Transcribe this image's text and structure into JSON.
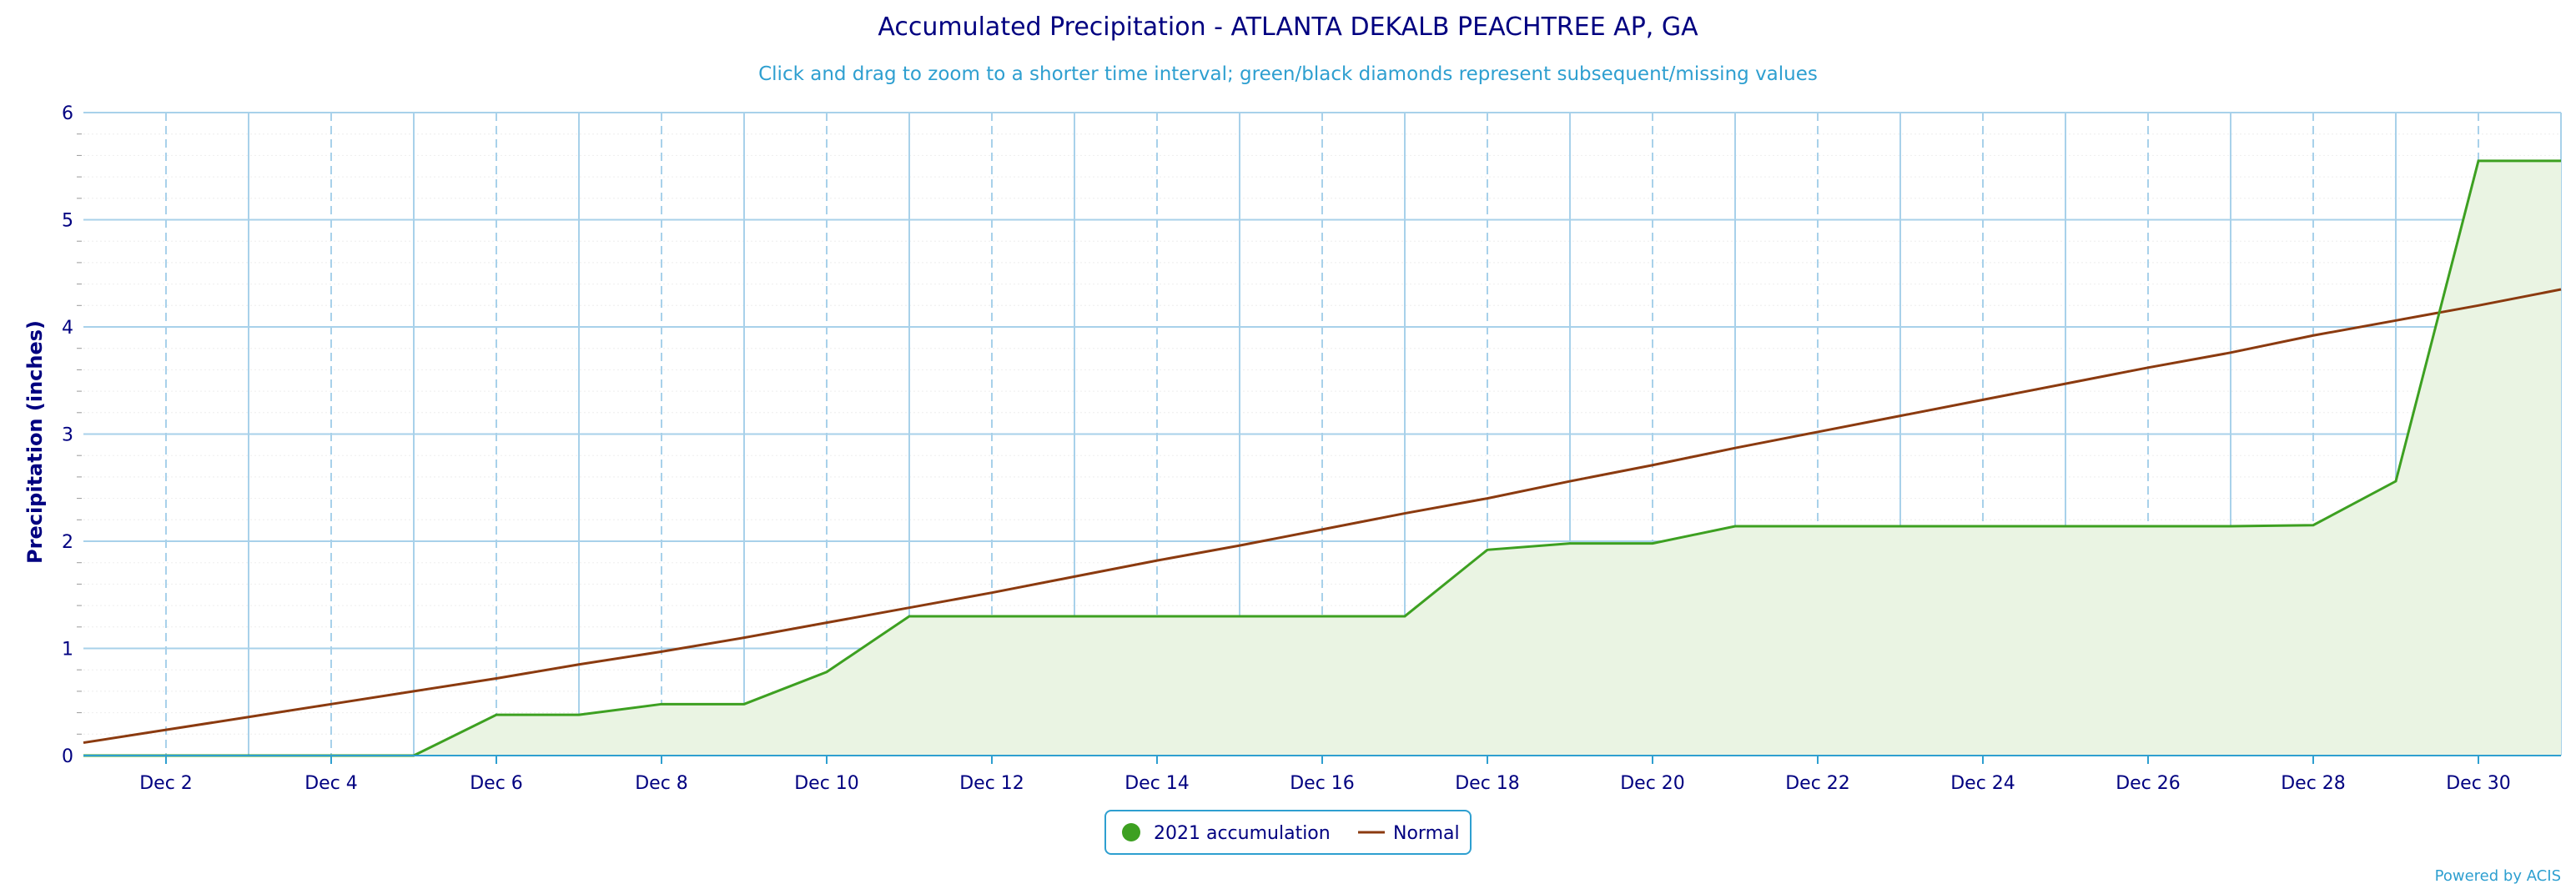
{
  "chart_data": {
    "type": "area",
    "title": "Accumulated Precipitation - ATLANTA DEKALB PEACHTREE AP, GA",
    "subtitle": "Click and drag to zoom to a shorter time interval; green/black diamonds represent subsequent/missing values",
    "xlabel": "",
    "ylabel": "Precipitation (inches)",
    "xlim": [
      "2021-12-01",
      "2021-12-31"
    ],
    "ylim": [
      0,
      6
    ],
    "y_ticks": [
      "0",
      "1",
      "2",
      "3",
      "4",
      "5",
      "6"
    ],
    "x_ticks": [
      {
        "date": "2021-12-02",
        "label": "Dec 2"
      },
      {
        "date": "2021-12-04",
        "label": "Dec 4"
      },
      {
        "date": "2021-12-06",
        "label": "Dec 6"
      },
      {
        "date": "2021-12-08",
        "label": "Dec 8"
      },
      {
        "date": "2021-12-10",
        "label": "Dec 10"
      },
      {
        "date": "2021-12-12",
        "label": "Dec 12"
      },
      {
        "date": "2021-12-14",
        "label": "Dec 14"
      },
      {
        "date": "2021-12-16",
        "label": "Dec 16"
      },
      {
        "date": "2021-12-18",
        "label": "Dec 18"
      },
      {
        "date": "2021-12-20",
        "label": "Dec 20"
      },
      {
        "date": "2021-12-22",
        "label": "Dec 22"
      },
      {
        "date": "2021-12-24",
        "label": "Dec 24"
      },
      {
        "date": "2021-12-26",
        "label": "Dec 26"
      },
      {
        "date": "2021-12-28",
        "label": "Dec 28"
      },
      {
        "date": "2021-12-30",
        "label": "Dec 30"
      }
    ],
    "x": [
      "2021-12-01",
      "2021-12-02",
      "2021-12-03",
      "2021-12-04",
      "2021-12-05",
      "2021-12-06",
      "2021-12-07",
      "2021-12-08",
      "2021-12-09",
      "2021-12-10",
      "2021-12-11",
      "2021-12-12",
      "2021-12-13",
      "2021-12-14",
      "2021-12-15",
      "2021-12-16",
      "2021-12-17",
      "2021-12-18",
      "2021-12-19",
      "2021-12-20",
      "2021-12-21",
      "2021-12-22",
      "2021-12-23",
      "2021-12-24",
      "2021-12-25",
      "2021-12-26",
      "2021-12-27",
      "2021-12-28",
      "2021-12-29",
      "2021-12-30",
      "2021-12-31"
    ],
    "series": [
      {
        "name": "2021 accumulation",
        "type": "area",
        "color": "#3da021",
        "fill": "#eaf4e3",
        "values": [
          0,
          0,
          0,
          0,
          0,
          0.38,
          0.38,
          0.48,
          0.48,
          0.78,
          1.3,
          1.3,
          1.3,
          1.3,
          1.3,
          1.3,
          1.3,
          1.92,
          1.98,
          1.98,
          2.14,
          2.14,
          2.14,
          2.14,
          2.14,
          2.14,
          2.14,
          2.15,
          2.56,
          5.55,
          5.55
        ]
      },
      {
        "name": "Normal",
        "type": "line",
        "color": "#8b3a0f",
        "values": [
          0.12,
          0.24,
          0.36,
          0.48,
          0.6,
          0.72,
          0.85,
          0.97,
          1.1,
          1.24,
          1.38,
          1.52,
          1.67,
          1.82,
          1.96,
          2.11,
          2.26,
          2.4,
          2.56,
          2.71,
          2.87,
          3.02,
          3.17,
          3.32,
          3.47,
          3.62,
          3.76,
          3.92,
          4.06,
          4.2,
          4.35
        ]
      }
    ],
    "grid": true,
    "legend_position": "bottom-center",
    "colors": {
      "title": "#000080",
      "subtitle": "#2e9fd0",
      "grid": "#a8d1ea",
      "minor_grid": "#eeeeee",
      "axis": "#2e9fd0"
    }
  },
  "credits": "Powered by ACIS"
}
